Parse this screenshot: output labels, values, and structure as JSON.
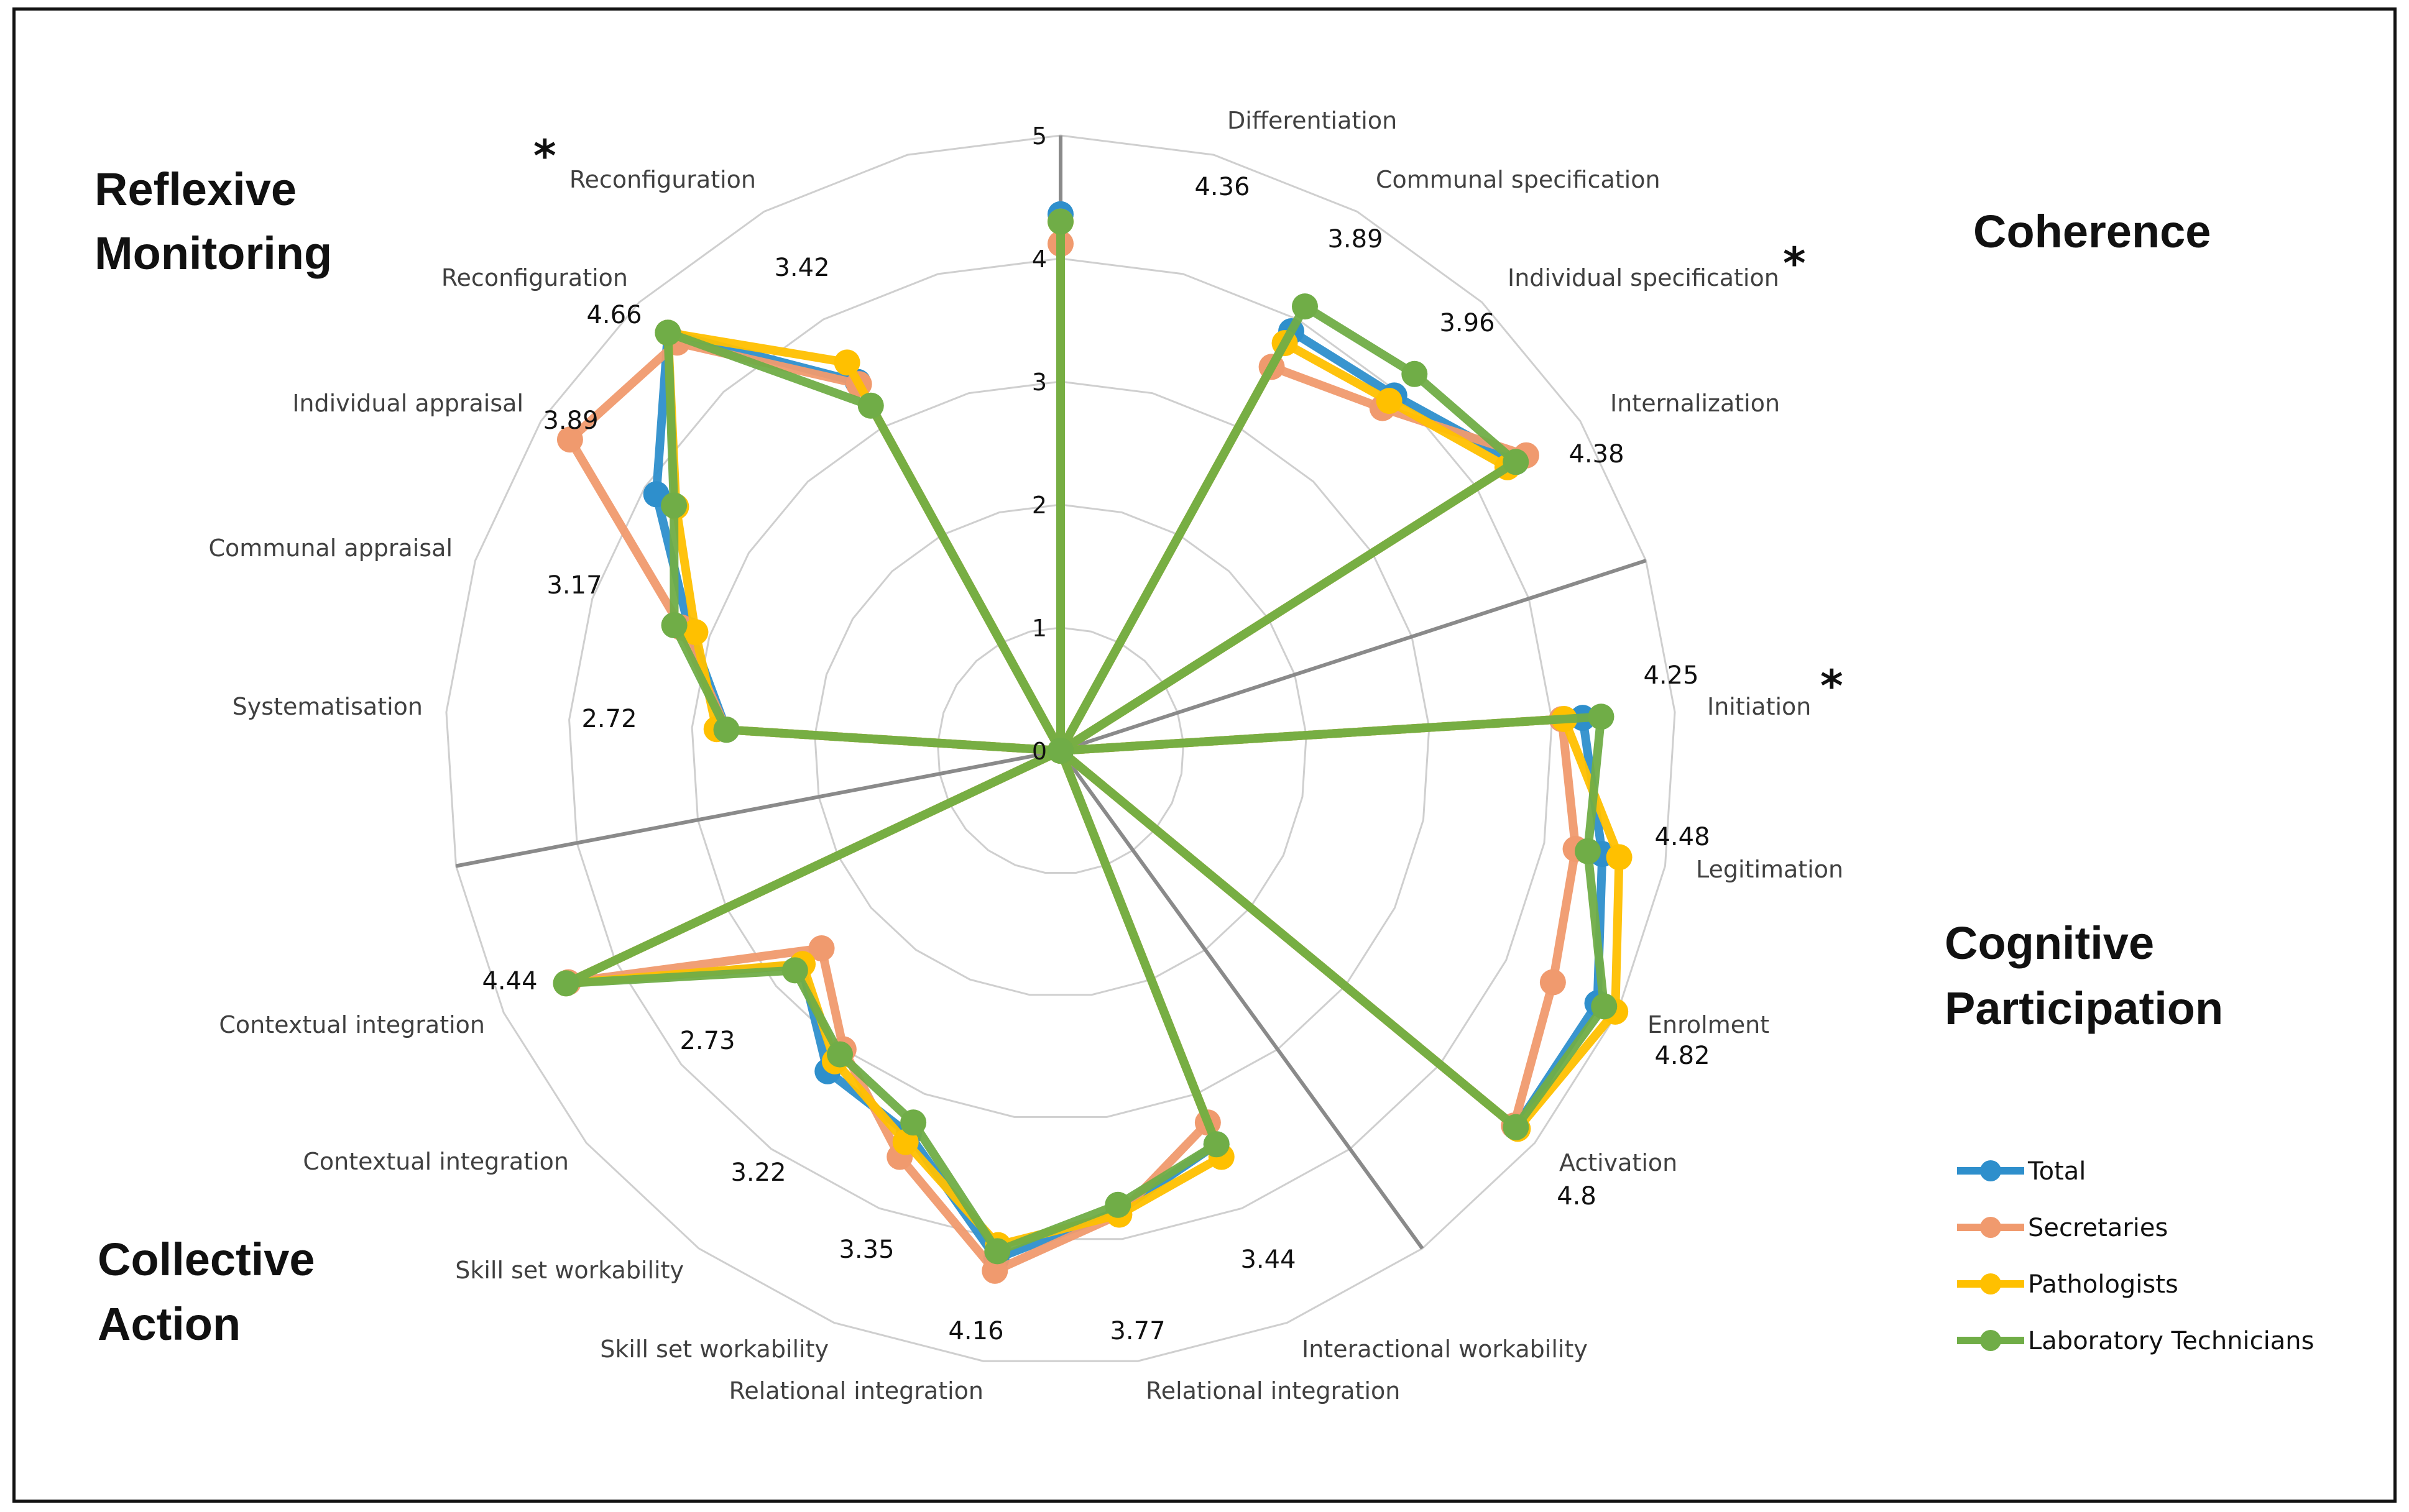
{
  "chart_data": {
    "type": "radar",
    "r_max": 5,
    "ticks": [
      "0",
      "1",
      "2",
      "3",
      "4",
      "5"
    ],
    "axes": [
      "Differentiation",
      "Communal specification",
      "Individual specification",
      "Internalization",
      "Initiation",
      "Legitimation",
      "Enrolment",
      "Activation",
      "Interactional workability",
      "Relational integration",
      "Relational integration",
      "Skill set workability",
      "Skill set workability",
      "Contextual integration",
      "Contextual integration",
      "Systematisation",
      "Communal appraisal",
      "Individual appraisal",
      "Reconfiguration",
      "Reconfiguration"
    ],
    "value_labels": [
      "4.36",
      "3.89",
      "3.96",
      "4.38",
      "4.25",
      "4.48",
      "4.82",
      "4.8",
      "3.44",
      "3.77",
      "4.16",
      "3.35",
      "3.22",
      "2.73",
      "4.44",
      "2.72",
      "3.17",
      "3.89",
      "4.66",
      "3.42"
    ],
    "domains": [
      "Coherence",
      "Cognitive Participation",
      "Collective Action",
      "Reflexive Monitoring"
    ],
    "significance_marker": "*",
    "series": [
      {
        "name": "Total",
        "color": "#2E8FCC",
        "values": [
          4.36,
          0,
          3.89,
          3.96,
          4.38,
          0,
          4.25,
          4.48,
          4.82,
          4.8,
          0,
          3.44,
          3.77,
          4.16,
          3.35,
          3.22,
          2.73,
          4.44,
          0,
          2.72,
          3.17,
          3.89,
          4.66,
          3.42,
          0
        ]
      },
      {
        "name": "Secretaries",
        "color": "#F09A6E",
        "values": [
          4.12,
          0,
          3.56,
          3.82,
          4.48,
          0,
          4.08,
          4.26,
          4.42,
          4.78,
          0,
          3.25,
          3.8,
          4.26,
          3.55,
          3.0,
          2.52,
          4.42,
          0,
          2.72,
          3.24,
          4.72,
          4.55,
          3.4,
          0
        ]
      },
      {
        "name": "Pathologists",
        "color": "#FFC000",
        "values": [
          4.3,
          0,
          3.78,
          3.9,
          4.3,
          0,
          4.1,
          4.62,
          4.98,
          4.82,
          0,
          3.55,
          3.8,
          4.05,
          3.42,
          3.12,
          2.72,
          4.44,
          0,
          2.8,
          3.12,
          3.7,
          4.66,
          3.6,
          0
        ]
      },
      {
        "name": "Laboratory Technicians",
        "color": "#70AD47",
        "values": [
          4.3,
          0,
          4.12,
          4.2,
          4.38,
          0,
          4.4,
          4.36,
          4.88,
          4.8,
          0,
          3.44,
          3.72,
          4.1,
          3.25,
          3.05,
          2.8,
          4.44,
          0,
          2.72,
          3.3,
          3.72,
          4.66,
          3.2,
          0
        ]
      }
    ],
    "legend_position": "bottom-right"
  }
}
